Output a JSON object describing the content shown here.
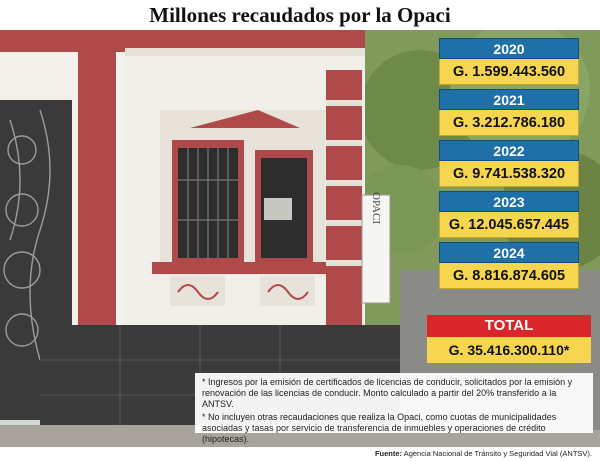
{
  "title": "Millones recaudados por la Opaci",
  "photo": {
    "description": "Fachada del edificio de la Opaci con letrero vertical",
    "sign_text": "OPACI"
  },
  "chart_data": {
    "type": "table",
    "title": "Millones recaudados por la Opaci",
    "categories": [
      "2020",
      "2021",
      "2022",
      "2023",
      "2024"
    ],
    "values": [
      1599443560,
      3212786180,
      9741538320,
      12045657445,
      8816874605
    ],
    "value_labels": [
      "G. 1.599.443.560",
      "G. 3.212.786.180",
      "G. 9.741.538.320",
      "G. 12.045.657.445",
      "G. 8.816.874.605"
    ],
    "total": {
      "label": "TOTAL",
      "value": 35416300110,
      "value_label": "G. 35.416.300.110*"
    }
  },
  "colors": {
    "year_header": "#1f6fa9",
    "value_bg": "#f6d64e",
    "total_header": "#d9262a"
  },
  "notes": [
    "* Ingresos por la emisión de certificados de licencias de conducir, solicitados por la emisión y renovación de las licencias de conducir. Monto calculado a partir del 20% transferido a la ANTSV.",
    "* No incluyen otras recaudaciones que realiza la Opaci, como cuotas de municipalidades asociadas y tasas por servicio de transferencia de inmuebles y operaciones de crédito (hipotecas)."
  ],
  "source": {
    "label": "Fuente:",
    "text": "Agencia Nacional de Tránsito y Seguridad Vial (ANTSV)."
  }
}
